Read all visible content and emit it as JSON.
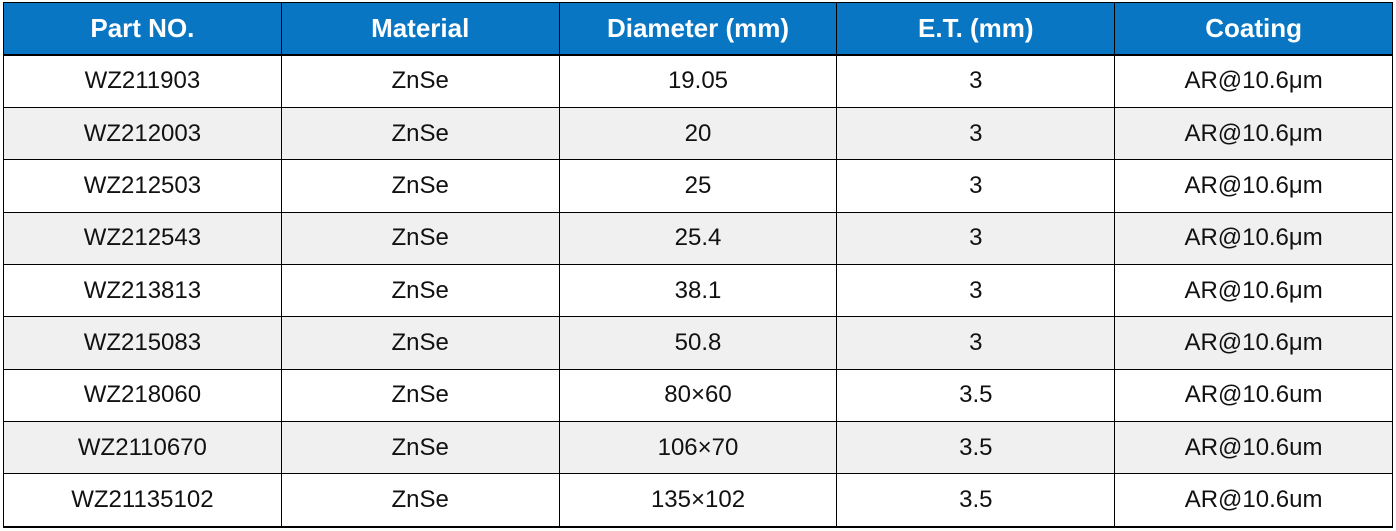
{
  "table": {
    "columns": [
      {
        "key": "part_no",
        "label": "Part NO."
      },
      {
        "key": "material",
        "label": "Material"
      },
      {
        "key": "diameter",
        "label": "Diameter (mm)"
      },
      {
        "key": "et",
        "label": "E.T. (mm)"
      },
      {
        "key": "coating",
        "label": "Coating"
      }
    ],
    "rows": [
      [
        "WZ211903",
        "ZnSe",
        "19.05",
        "3",
        "AR@10.6μm"
      ],
      [
        "WZ212003",
        "ZnSe",
        "20",
        "3",
        "AR@10.6μm"
      ],
      [
        "WZ212503",
        "ZnSe",
        "25",
        "3",
        "AR@10.6μm"
      ],
      [
        "WZ212543",
        "ZnSe",
        "25.4",
        "3",
        "AR@10.6μm"
      ],
      [
        "WZ213813",
        "ZnSe",
        "38.1",
        "3",
        "AR@10.6μm"
      ],
      [
        "WZ215083",
        "ZnSe",
        "50.8",
        "3",
        "AR@10.6μm"
      ],
      [
        "WZ218060",
        "ZnSe",
        "80×60",
        "3.5",
        "AR@10.6um"
      ],
      [
        "WZ2110670",
        "ZnSe",
        "106×70",
        "3.5",
        "AR@10.6um"
      ],
      [
        "WZ21135102",
        "ZnSe",
        "135×102",
        "3.5",
        "AR@10.6um"
      ]
    ],
    "colors": {
      "header_bg": "#0876C2",
      "header_text": "#FFFFFF",
      "row_bg": "#FFFFFF",
      "row_alt_bg": "#F0F0F0",
      "border": "#000000",
      "text": "#111111"
    }
  }
}
